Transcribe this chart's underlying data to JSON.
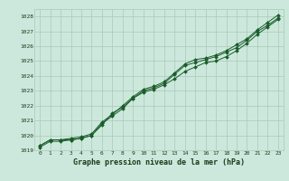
{
  "title": "Graphe pression niveau de la mer (hPa)",
  "background_color": "#cce8dc",
  "plot_bg_color": "#cce8dc",
  "grid_color": "#aac8b8",
  "line_color": "#1a5c2a",
  "marker_color": "#1a5c2a",
  "xlim": [
    -0.5,
    23.5
  ],
  "ylim": [
    1019.0,
    1028.5
  ],
  "yticks": [
    1019,
    1020,
    1021,
    1022,
    1023,
    1024,
    1025,
    1026,
    1027,
    1028
  ],
  "xticks": [
    0,
    1,
    2,
    3,
    4,
    5,
    6,
    7,
    8,
    9,
    10,
    11,
    12,
    13,
    14,
    15,
    16,
    17,
    18,
    19,
    20,
    21,
    22,
    23
  ],
  "series": [
    [
      1019.3,
      1019.7,
      1019.7,
      1019.7,
      1019.8,
      1020.0,
      1020.8,
      1021.3,
      1021.8,
      1022.5,
      1022.9,
      1023.1,
      1023.4,
      1023.8,
      1024.3,
      1024.6,
      1024.9,
      1025.0,
      1025.3,
      1025.7,
      1026.2,
      1026.8,
      1027.3,
      1027.8
    ],
    [
      1019.2,
      1019.6,
      1019.6,
      1019.7,
      1019.8,
      1020.0,
      1020.7,
      1021.5,
      1021.9,
      1022.5,
      1023.0,
      1023.2,
      1023.5,
      1024.1,
      1024.7,
      1024.9,
      1025.1,
      1025.3,
      1025.6,
      1025.9,
      1026.4,
      1027.0,
      1027.4,
      1027.9
    ],
    [
      1019.3,
      1019.7,
      1019.7,
      1019.8,
      1019.9,
      1020.1,
      1020.9,
      1021.4,
      1022.0,
      1022.6,
      1023.1,
      1023.3,
      1023.6,
      1024.2,
      1024.8,
      1025.1,
      1025.2,
      1025.4,
      1025.7,
      1026.1,
      1026.5,
      1027.1,
      1027.6,
      1028.1
    ]
  ]
}
